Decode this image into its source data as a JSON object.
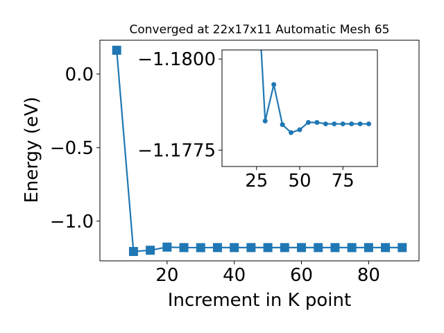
{
  "chart_data": [
    {
      "type": "line",
      "role": "main",
      "title": "Converged at 22x17x11 Automatic Mesh 65",
      "xlabel": "Increment in K point",
      "ylabel": "Energy (eV)",
      "xlim": [
        0,
        95
      ],
      "ylim": [
        -1.27,
        0.23
      ],
      "xticks": [
        20,
        40,
        60,
        80
      ],
      "xtick_labels": [
        "20",
        "40",
        "60",
        "80"
      ],
      "yticks": [
        0.0,
        -0.5,
        -1.0
      ],
      "ytick_labels": [
        "0.0",
        "−0.5",
        "−1.0"
      ],
      "marker": "square",
      "color": "#1f77b4",
      "series": [
        {
          "x": [
            5,
            10,
            15,
            20,
            25,
            30,
            35,
            40,
            45,
            50,
            55,
            60,
            65,
            70,
            75,
            80,
            85,
            90
          ],
          "y": [
            0.162,
            -1.2064,
            -1.1978,
            -1.1766,
            -1.1798,
            -1.1802,
            -1.1798,
            -1.1798,
            -1.1798,
            -1.1798,
            -1.1798,
            -1.1798,
            -1.1798,
            -1.1798,
            -1.1798,
            -1.1798,
            -1.1798,
            -1.1798
          ]
        }
      ]
    },
    {
      "type": "line",
      "role": "inset",
      "title": "",
      "xlabel": "",
      "ylabel": "",
      "xlim": [
        5,
        95
      ],
      "ylim": [
        -1.17705,
        -1.18025
      ],
      "y_inverted": true,
      "xticks": [
        25,
        50,
        75
      ],
      "xtick_labels": [
        "25",
        "50",
        "75"
      ],
      "yticks": [
        -1.18,
        -1.1775
      ],
      "ytick_labels": [
        "−1.1800",
        "−1.1775"
      ],
      "marker": "circle",
      "color": "#1f77b4",
      "series": [
        {
          "x": [
            25,
            30,
            35,
            40,
            45,
            50,
            55,
            60,
            65,
            70,
            75,
            80,
            85,
            90
          ],
          "y": [
            -1.1826,
            -1.1783,
            -1.1793,
            -1.1782,
            -1.17798,
            -1.17806,
            -1.17826,
            -1.17826,
            -1.17822,
            -1.17822,
            -1.17822,
            -1.17822,
            -1.17822,
            -1.17822
          ]
        }
      ]
    }
  ]
}
